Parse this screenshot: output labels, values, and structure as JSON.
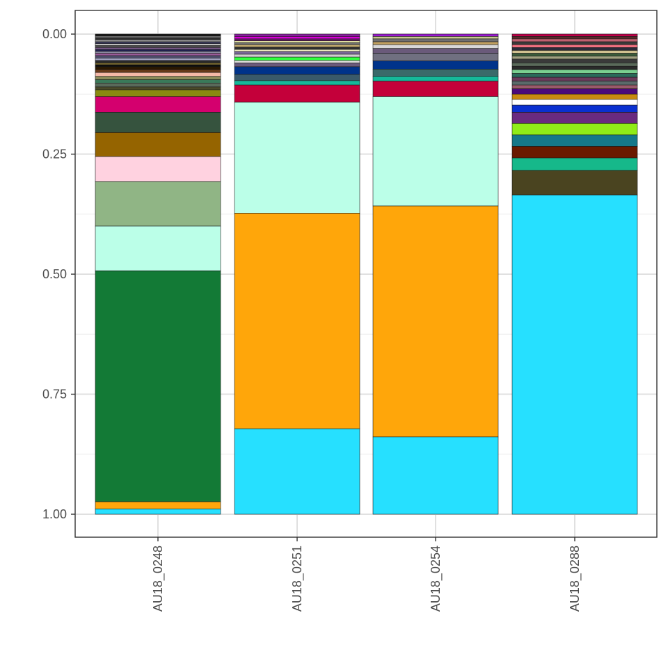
{
  "chart_data": {
    "type": "bar",
    "stacked": true,
    "orientation": "vertical",
    "y_reversed": true,
    "ylim": [
      0,
      1
    ],
    "yticks": [
      "0.00",
      "0.25",
      "0.50",
      "0.75",
      "1.00"
    ],
    "ytick_values": [
      0,
      0.25,
      0.5,
      0.75,
      1
    ],
    "title": "",
    "xlabel": "",
    "ylabel": "",
    "grid": true,
    "legend": "none",
    "categories": [
      "AU18_0248",
      "AU18_0251",
      "AU18_0254",
      "AU18_0288"
    ],
    "bars": [
      {
        "category": "AU18_0248",
        "segments": [
          {
            "from": 0.0,
            "to": 0.004,
            "color": "#1a1a1a"
          },
          {
            "from": 0.004,
            "to": 0.008,
            "color": "#6e6e6e"
          },
          {
            "from": 0.008,
            "to": 0.012,
            "color": "#2f2f2f"
          },
          {
            "from": 0.012,
            "to": 0.016,
            "color": "#9e9e9e"
          },
          {
            "from": 0.016,
            "to": 0.02,
            "color": "#3a3a5a"
          },
          {
            "from": 0.02,
            "to": 0.024,
            "color": "#c8c8c8"
          },
          {
            "from": 0.024,
            "to": 0.028,
            "color": "#4a4a4a"
          },
          {
            "from": 0.028,
            "to": 0.032,
            "color": "#7a5a8a"
          },
          {
            "from": 0.032,
            "to": 0.036,
            "color": "#202050"
          },
          {
            "from": 0.036,
            "to": 0.04,
            "color": "#8a8aa0"
          },
          {
            "from": 0.04,
            "to": 0.045,
            "color": "#9a5a9a"
          },
          {
            "from": 0.045,
            "to": 0.05,
            "color": "#505070"
          },
          {
            "from": 0.05,
            "to": 0.055,
            "color": "#a0a0c0"
          },
          {
            "from": 0.055,
            "to": 0.06,
            "color": "#2a2a2a"
          },
          {
            "from": 0.06,
            "to": 0.064,
            "color": "#7a6a30"
          },
          {
            "from": 0.064,
            "to": 0.068,
            "color": "#0a0a0a"
          },
          {
            "from": 0.068,
            "to": 0.074,
            "color": "#2a1800"
          },
          {
            "from": 0.074,
            "to": 0.08,
            "color": "#6a3a1a"
          },
          {
            "from": 0.08,
            "to": 0.088,
            "color": "#f5b8a8"
          },
          {
            "from": 0.088,
            "to": 0.095,
            "color": "#8a8a5a"
          },
          {
            "from": 0.095,
            "to": 0.102,
            "color": "#3a7a5a"
          },
          {
            "from": 0.102,
            "to": 0.11,
            "color": "#5a6a5a"
          },
          {
            "from": 0.11,
            "to": 0.116,
            "color": "#4a4a2a"
          },
          {
            "from": 0.116,
            "to": 0.13,
            "color": "#8a8a10"
          },
          {
            "from": 0.13,
            "to": 0.163,
            "color": "#d4006e"
          },
          {
            "from": 0.163,
            "to": 0.205,
            "color": "#36533e"
          },
          {
            "from": 0.205,
            "to": 0.255,
            "color": "#956400"
          },
          {
            "from": 0.255,
            "to": 0.307,
            "color": "#ffd2e0"
          },
          {
            "from": 0.307,
            "to": 0.4,
            "color": "#90b585"
          },
          {
            "from": 0.4,
            "to": 0.493,
            "color": "#bbffe8"
          },
          {
            "from": 0.493,
            "to": 0.974,
            "color": "#137a36"
          },
          {
            "from": 0.974,
            "to": 0.989,
            "color": "#ffa60a"
          },
          {
            "from": 0.989,
            "to": 1.0,
            "color": "#26e0ff"
          }
        ]
      },
      {
        "category": "AU18_0251",
        "segments": [
          {
            "from": 0.0,
            "to": 0.005,
            "color": "#8a1ea0"
          },
          {
            "from": 0.005,
            "to": 0.01,
            "color": "#d400d4"
          },
          {
            "from": 0.01,
            "to": 0.014,
            "color": "#6a1a6a"
          },
          {
            "from": 0.014,
            "to": 0.018,
            "color": "#e0e0a0"
          },
          {
            "from": 0.018,
            "to": 0.022,
            "color": "#707070"
          },
          {
            "from": 0.022,
            "to": 0.027,
            "color": "#c8b070"
          },
          {
            "from": 0.027,
            "to": 0.032,
            "color": "#303030"
          },
          {
            "from": 0.032,
            "to": 0.036,
            "color": "#f0f0c0"
          },
          {
            "from": 0.036,
            "to": 0.042,
            "color": "#7a6a9a"
          },
          {
            "from": 0.042,
            "to": 0.048,
            "color": "#d0d0d0"
          },
          {
            "from": 0.048,
            "to": 0.055,
            "color": "#30ff40"
          },
          {
            "from": 0.055,
            "to": 0.06,
            "color": "#e0e0e0"
          },
          {
            "from": 0.06,
            "to": 0.068,
            "color": "#6a5a7a"
          },
          {
            "from": 0.068,
            "to": 0.084,
            "color": "#00338a"
          },
          {
            "from": 0.084,
            "to": 0.097,
            "color": "#3a5a6a"
          },
          {
            "from": 0.097,
            "to": 0.106,
            "color": "#16b89a"
          },
          {
            "from": 0.106,
            "to": 0.142,
            "color": "#c4003a"
          },
          {
            "from": 0.142,
            "to": 0.373,
            "color": "#bbffe8"
          },
          {
            "from": 0.373,
            "to": 0.822,
            "color": "#ffa60a"
          },
          {
            "from": 0.822,
            "to": 1.0,
            "color": "#26e0ff"
          }
        ]
      },
      {
        "category": "AU18_0254",
        "segments": [
          {
            "from": 0.0,
            "to": 0.005,
            "color": "#9a1ad0"
          },
          {
            "from": 0.005,
            "to": 0.01,
            "color": "#c8c890"
          },
          {
            "from": 0.01,
            "to": 0.016,
            "color": "#707070"
          },
          {
            "from": 0.016,
            "to": 0.022,
            "color": "#c0a060"
          },
          {
            "from": 0.022,
            "to": 0.03,
            "color": "#d8d8d8"
          },
          {
            "from": 0.03,
            "to": 0.04,
            "color": "#6a5a7a"
          },
          {
            "from": 0.04,
            "to": 0.056,
            "color": "#707080"
          },
          {
            "from": 0.056,
            "to": 0.073,
            "color": "#00338a"
          },
          {
            "from": 0.073,
            "to": 0.088,
            "color": "#3a6a6a"
          },
          {
            "from": 0.088,
            "to": 0.098,
            "color": "#16b89a"
          },
          {
            "from": 0.098,
            "to": 0.13,
            "color": "#c4003a"
          },
          {
            "from": 0.13,
            "to": 0.358,
            "color": "#bbffe8"
          },
          {
            "from": 0.358,
            "to": 0.839,
            "color": "#ffa60a"
          },
          {
            "from": 0.839,
            "to": 1.0,
            "color": "#26e0ff"
          }
        ]
      },
      {
        "category": "AU18_0288",
        "segments": [
          {
            "from": 0.0,
            "to": 0.005,
            "color": "#c0004a"
          },
          {
            "from": 0.005,
            "to": 0.01,
            "color": "#5a2a2a"
          },
          {
            "from": 0.01,
            "to": 0.016,
            "color": "#c06070"
          },
          {
            "from": 0.016,
            "to": 0.022,
            "color": "#3a3a3a"
          },
          {
            "from": 0.022,
            "to": 0.028,
            "color": "#f07080"
          },
          {
            "from": 0.028,
            "to": 0.034,
            "color": "#2a2a3a"
          },
          {
            "from": 0.034,
            "to": 0.04,
            "color": "#d0c090"
          },
          {
            "from": 0.04,
            "to": 0.046,
            "color": "#3a5a3a"
          },
          {
            "from": 0.046,
            "to": 0.052,
            "color": "#a0a080"
          },
          {
            "from": 0.052,
            "to": 0.06,
            "color": "#3a3a3a"
          },
          {
            "from": 0.06,
            "to": 0.067,
            "color": "#5a6a5a"
          },
          {
            "from": 0.067,
            "to": 0.074,
            "color": "#2a2a2a"
          },
          {
            "from": 0.074,
            "to": 0.082,
            "color": "#7ad090"
          },
          {
            "from": 0.082,
            "to": 0.09,
            "color": "#2a6a5a"
          },
          {
            "from": 0.09,
            "to": 0.098,
            "color": "#6a3a5a"
          },
          {
            "from": 0.098,
            "to": 0.106,
            "color": "#5a6a6a"
          },
          {
            "from": 0.106,
            "to": 0.114,
            "color": "#9a5a6a"
          },
          {
            "from": 0.114,
            "to": 0.125,
            "color": "#4a0a7a"
          },
          {
            "from": 0.125,
            "to": 0.136,
            "color": "#c88a10"
          },
          {
            "from": 0.136,
            "to": 0.148,
            "color": "#ffffff"
          },
          {
            "from": 0.148,
            "to": 0.163,
            "color": "#0a30d0"
          },
          {
            "from": 0.163,
            "to": 0.186,
            "color": "#6a2a80"
          },
          {
            "from": 0.186,
            "to": 0.21,
            "color": "#90ec18"
          },
          {
            "from": 0.21,
            "to": 0.234,
            "color": "#16788a"
          },
          {
            "from": 0.234,
            "to": 0.258,
            "color": "#6a1a00"
          },
          {
            "from": 0.258,
            "to": 0.284,
            "color": "#16b88a"
          },
          {
            "from": 0.284,
            "to": 0.335,
            "color": "#4a4420"
          },
          {
            "from": 0.335,
            "to": 1.0,
            "color": "#26e0ff"
          }
        ]
      }
    ]
  }
}
